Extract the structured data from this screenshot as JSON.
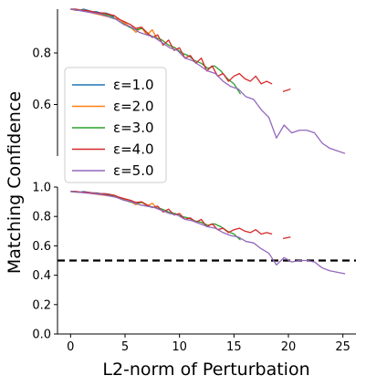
{
  "chart_data": {
    "type": "line",
    "ylabel": "Matching Confidence",
    "xlabel": "L2-norm of Perturbation",
    "threshold": 0.5,
    "colors": {
      "eps1": "#1f77b4",
      "eps2": "#ff7f0e",
      "eps3": "#2ca02c",
      "eps4": "#d62728",
      "eps5": "#9467bd",
      "threshold": "#000000"
    },
    "legend": {
      "placement": "upper panel, left",
      "entries": [
        "ε=1.0",
        "ε=2.0",
        "ε=3.0",
        "ε=4.0",
        "ε=5.0"
      ]
    },
    "panels": [
      {
        "name": "zoomed",
        "ylim": [
          0.4,
          0.97
        ],
        "xlim": [
          -1.2,
          26.2
        ],
        "yticks": [
          0.6,
          0.8
        ],
        "ytick_labels": [
          "0.6",
          "0.8"
        ]
      },
      {
        "name": "full",
        "ylim": [
          0.0,
          1.0
        ],
        "xlim": [
          -1.2,
          26.2
        ],
        "yticks": [
          0.0,
          0.2,
          0.4,
          0.6,
          0.8,
          1.0
        ],
        "ytick_labels": [
          "0.0",
          "0.2",
          "0.4",
          "0.6",
          "0.8",
          "1.0"
        ],
        "xticks": [
          0,
          5,
          10,
          15,
          20,
          25
        ],
        "xtick_labels": [
          "0",
          "5",
          "10",
          "15",
          "20",
          "25"
        ]
      }
    ],
    "series": [
      {
        "name": "ε=1.0",
        "color_key": "eps1",
        "points": [
          [
            0,
            0.97
          ],
          [
            0.4,
            0.97
          ],
          [
            0.8,
            0.965
          ],
          [
            1.2,
            0.97
          ],
          [
            1.6,
            0.965
          ],
          [
            2.0,
            0.96
          ],
          [
            2.4,
            0.96
          ],
          [
            2.8,
            0.955
          ],
          [
            3.2,
            0.955
          ],
          [
            3.6,
            0.95
          ],
          [
            4.0,
            0.94
          ]
        ]
      },
      {
        "name": "ε=2.0",
        "color_key": "eps2",
        "points": [
          [
            0,
            0.97
          ],
          [
            0.5,
            0.965
          ],
          [
            1.0,
            0.965
          ],
          [
            1.5,
            0.96
          ],
          [
            2.0,
            0.955
          ],
          [
            2.5,
            0.95
          ],
          [
            3.0,
            0.945
          ],
          [
            3.5,
            0.94
          ],
          [
            4.0,
            0.935
          ],
          [
            4.5,
            0.93
          ],
          [
            5.0,
            0.915
          ],
          [
            5.5,
            0.9
          ],
          [
            6.0,
            0.88
          ],
          [
            6.5,
            0.9
          ],
          [
            7.0,
            0.87
          ],
          [
            7.5,
            0.89
          ],
          [
            8.0,
            0.85
          ]
        ]
      },
      {
        "name": "ε=3.0",
        "color_key": "eps3",
        "points": [
          [
            0,
            0.97
          ],
          [
            0.6,
            0.965
          ],
          [
            1.2,
            0.965
          ],
          [
            1.8,
            0.96
          ],
          [
            2.4,
            0.955
          ],
          [
            3.0,
            0.95
          ],
          [
            3.6,
            0.945
          ],
          [
            4.2,
            0.93
          ],
          [
            4.8,
            0.915
          ],
          [
            5.4,
            0.9
          ],
          [
            6.0,
            0.89
          ],
          [
            6.6,
            0.895
          ],
          [
            7.2,
            0.87
          ],
          [
            7.8,
            0.86
          ],
          [
            8.4,
            0.85
          ],
          [
            9.0,
            0.83
          ],
          [
            9.6,
            0.82
          ],
          [
            10.2,
            0.8
          ],
          [
            10.8,
            0.79
          ],
          [
            11.4,
            0.77
          ],
          [
            12.0,
            0.76
          ],
          [
            12.6,
            0.74
          ],
          [
            13.2,
            0.75
          ],
          [
            13.8,
            0.73
          ],
          [
            14.4,
            0.7
          ],
          [
            15.0,
            0.68
          ],
          [
            15.6,
            0.64
          ]
        ]
      },
      {
        "name": "ε=4.0",
        "color_key": "eps4",
        "points": [
          [
            0,
            0.97
          ],
          [
            0.5,
            0.97
          ],
          [
            1.0,
            0.965
          ],
          [
            1.5,
            0.965
          ],
          [
            2.0,
            0.96
          ],
          [
            2.5,
            0.955
          ],
          [
            3.0,
            0.955
          ],
          [
            3.5,
            0.95
          ],
          [
            4.0,
            0.945
          ],
          [
            4.5,
            0.93
          ],
          [
            5.0,
            0.92
          ],
          [
            5.5,
            0.91
          ],
          [
            6.0,
            0.895
          ],
          [
            6.5,
            0.9
          ],
          [
            7.0,
            0.88
          ],
          [
            7.5,
            0.86
          ],
          [
            8.0,
            0.87
          ],
          [
            8.5,
            0.83
          ],
          [
            9.0,
            0.85
          ],
          [
            9.5,
            0.81
          ],
          [
            10.0,
            0.82
          ],
          [
            10.5,
            0.78
          ],
          [
            11.0,
            0.79
          ],
          [
            11.5,
            0.76
          ],
          [
            12.0,
            0.78
          ],
          [
            12.5,
            0.73
          ],
          [
            13.0,
            0.75
          ],
          [
            13.5,
            0.71
          ],
          [
            14.0,
            0.72
          ],
          [
            14.5,
            0.69
          ],
          [
            15.0,
            0.71
          ],
          [
            15.5,
            0.72
          ],
          [
            16.0,
            0.7
          ],
          [
            16.5,
            0.69
          ],
          [
            17.0,
            0.71
          ],
          [
            17.5,
            0.68
          ],
          [
            18.0,
            0.69
          ],
          [
            18.5,
            0.68
          ],
          null,
          [
            19.5,
            0.65
          ],
          [
            20.2,
            0.66
          ]
        ]
      },
      {
        "name": "ε=5.0",
        "color_key": "eps5",
        "points": [
          [
            0,
            0.97
          ],
          [
            0.7,
            0.965
          ],
          [
            1.4,
            0.96
          ],
          [
            2.1,
            0.955
          ],
          [
            2.8,
            0.95
          ],
          [
            3.5,
            0.94
          ],
          [
            4.2,
            0.93
          ],
          [
            4.9,
            0.91
          ],
          [
            5.6,
            0.9
          ],
          [
            6.3,
            0.88
          ],
          [
            7.0,
            0.87
          ],
          [
            7.7,
            0.86
          ],
          [
            8.4,
            0.84
          ],
          [
            9.1,
            0.82
          ],
          [
            9.8,
            0.81
          ],
          [
            10.5,
            0.78
          ],
          [
            11.2,
            0.77
          ],
          [
            11.9,
            0.75
          ],
          [
            12.6,
            0.73
          ],
          [
            13.3,
            0.72
          ],
          [
            14.0,
            0.69
          ],
          [
            14.7,
            0.67
          ],
          [
            15.4,
            0.66
          ],
          [
            16.1,
            0.63
          ],
          [
            16.8,
            0.62
          ],
          [
            17.5,
            0.58
          ],
          [
            18.2,
            0.55
          ],
          [
            18.9,
            0.47
          ],
          [
            19.6,
            0.52
          ],
          [
            20.3,
            0.49
          ],
          [
            21.0,
            0.5
          ],
          [
            21.7,
            0.5
          ],
          [
            22.4,
            0.49
          ],
          [
            23.1,
            0.45
          ],
          [
            23.8,
            0.43
          ],
          [
            24.5,
            0.42
          ],
          [
            25.2,
            0.41
          ]
        ]
      }
    ]
  }
}
